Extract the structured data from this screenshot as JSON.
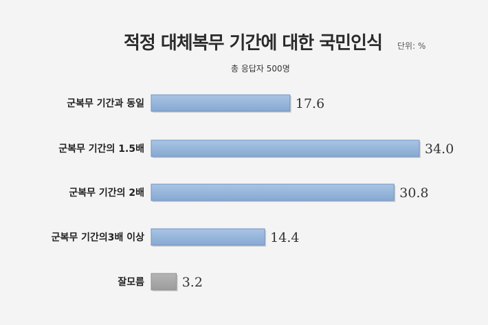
{
  "chart_data": {
    "type": "bar",
    "orientation": "horizontal",
    "title": "적정 대체복무 기간에 대한 국민인식",
    "unit": "단위: %",
    "subtitle": "총 응답자 500명",
    "categories": [
      "군복무 기간과 동일",
      "군복무 기간의  1.5배",
      "군복무 기간의  2배",
      "군복무 기간의3배 이상",
      "잘모름"
    ],
    "values": [
      17.6,
      34.0,
      30.8,
      14.4,
      3.2
    ],
    "value_labels": [
      "17.6",
      "34.0",
      "30.8",
      "14.4",
      "3.2"
    ],
    "colors": [
      "#93b3d9",
      "#93b3d9",
      "#93b3d9",
      "#93b3d9",
      "#a8a8a8"
    ],
    "xlim": [
      0,
      34.0
    ],
    "grid": false,
    "legend": "none"
  }
}
